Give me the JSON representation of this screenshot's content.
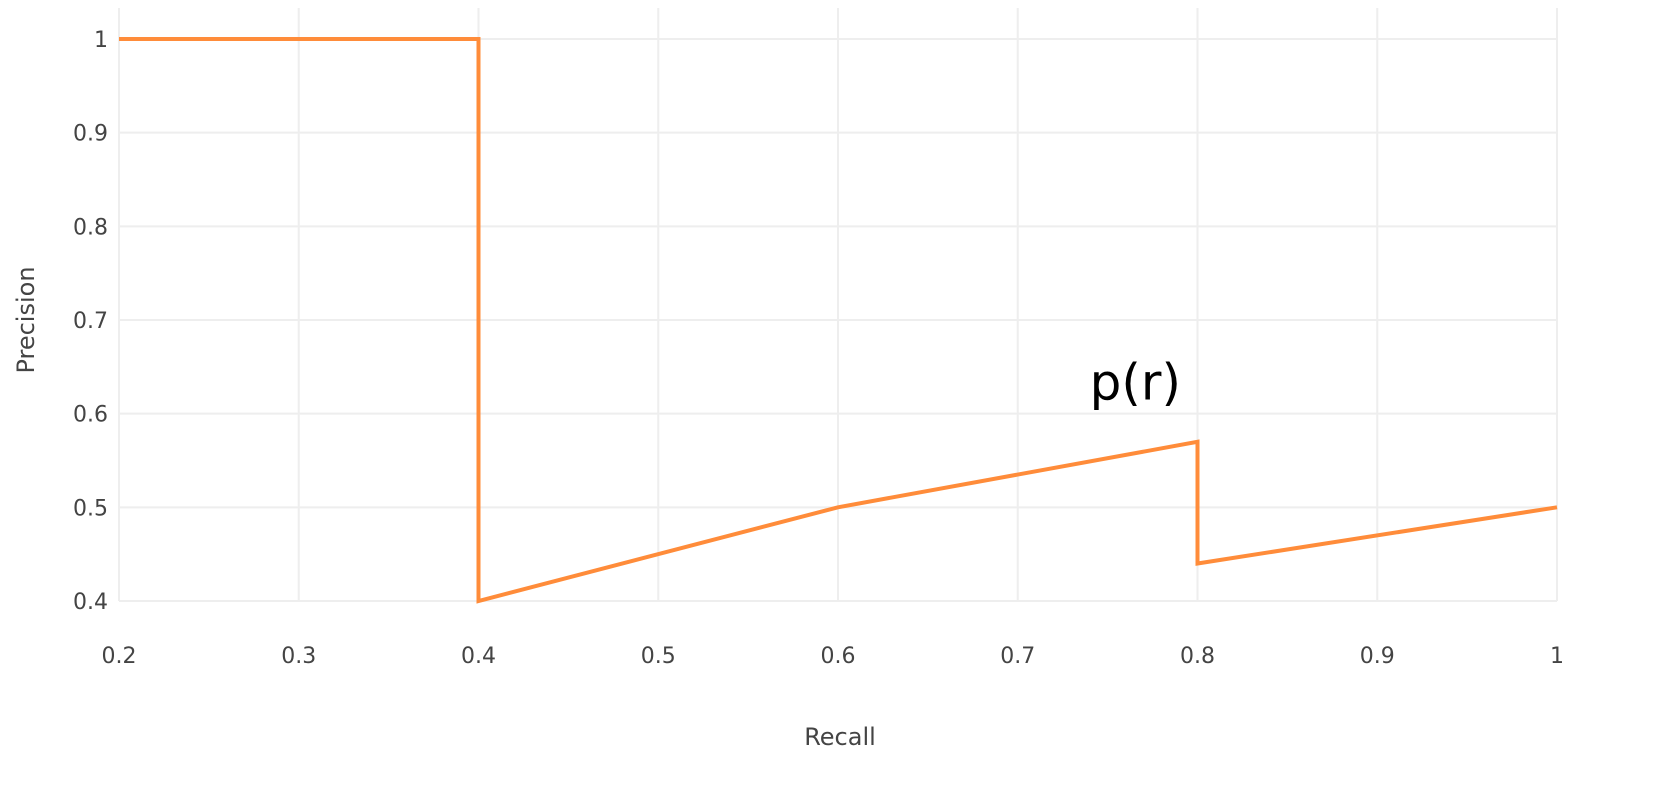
{
  "chart_data": {
    "type": "line",
    "xlabel": "Recall",
    "ylabel": "Precision",
    "xlim": [
      0.2,
      1.0
    ],
    "ylim": [
      0.4,
      1.0
    ],
    "x_ticks": [
      0.2,
      0.3,
      0.4,
      0.5,
      0.6,
      0.7,
      0.8,
      0.9,
      1.0
    ],
    "y_ticks": [
      0.4,
      0.5,
      0.6,
      0.7,
      0.8,
      0.9,
      1.0
    ],
    "x_tick_labels": [
      "0.2",
      "0.3",
      "0.4",
      "0.5",
      "0.6",
      "0.7",
      "0.8",
      "0.9",
      "1"
    ],
    "y_tick_labels": [
      "0.4",
      "0.5",
      "0.6",
      "0.7",
      "0.8",
      "0.9",
      "1"
    ],
    "grid": true,
    "legend": "none",
    "series": [
      {
        "color": "#ff8c3a",
        "x": [
          0.2,
          0.4,
          0.4,
          0.6,
          0.8,
          0.8,
          1.0
        ],
        "y": [
          1.0,
          1.0,
          0.4,
          0.5,
          0.57,
          0.44,
          0.5
        ]
      }
    ],
    "annotations": [
      {
        "text": "p(r)",
        "x": 0.74,
        "y": 0.615
      }
    ]
  }
}
